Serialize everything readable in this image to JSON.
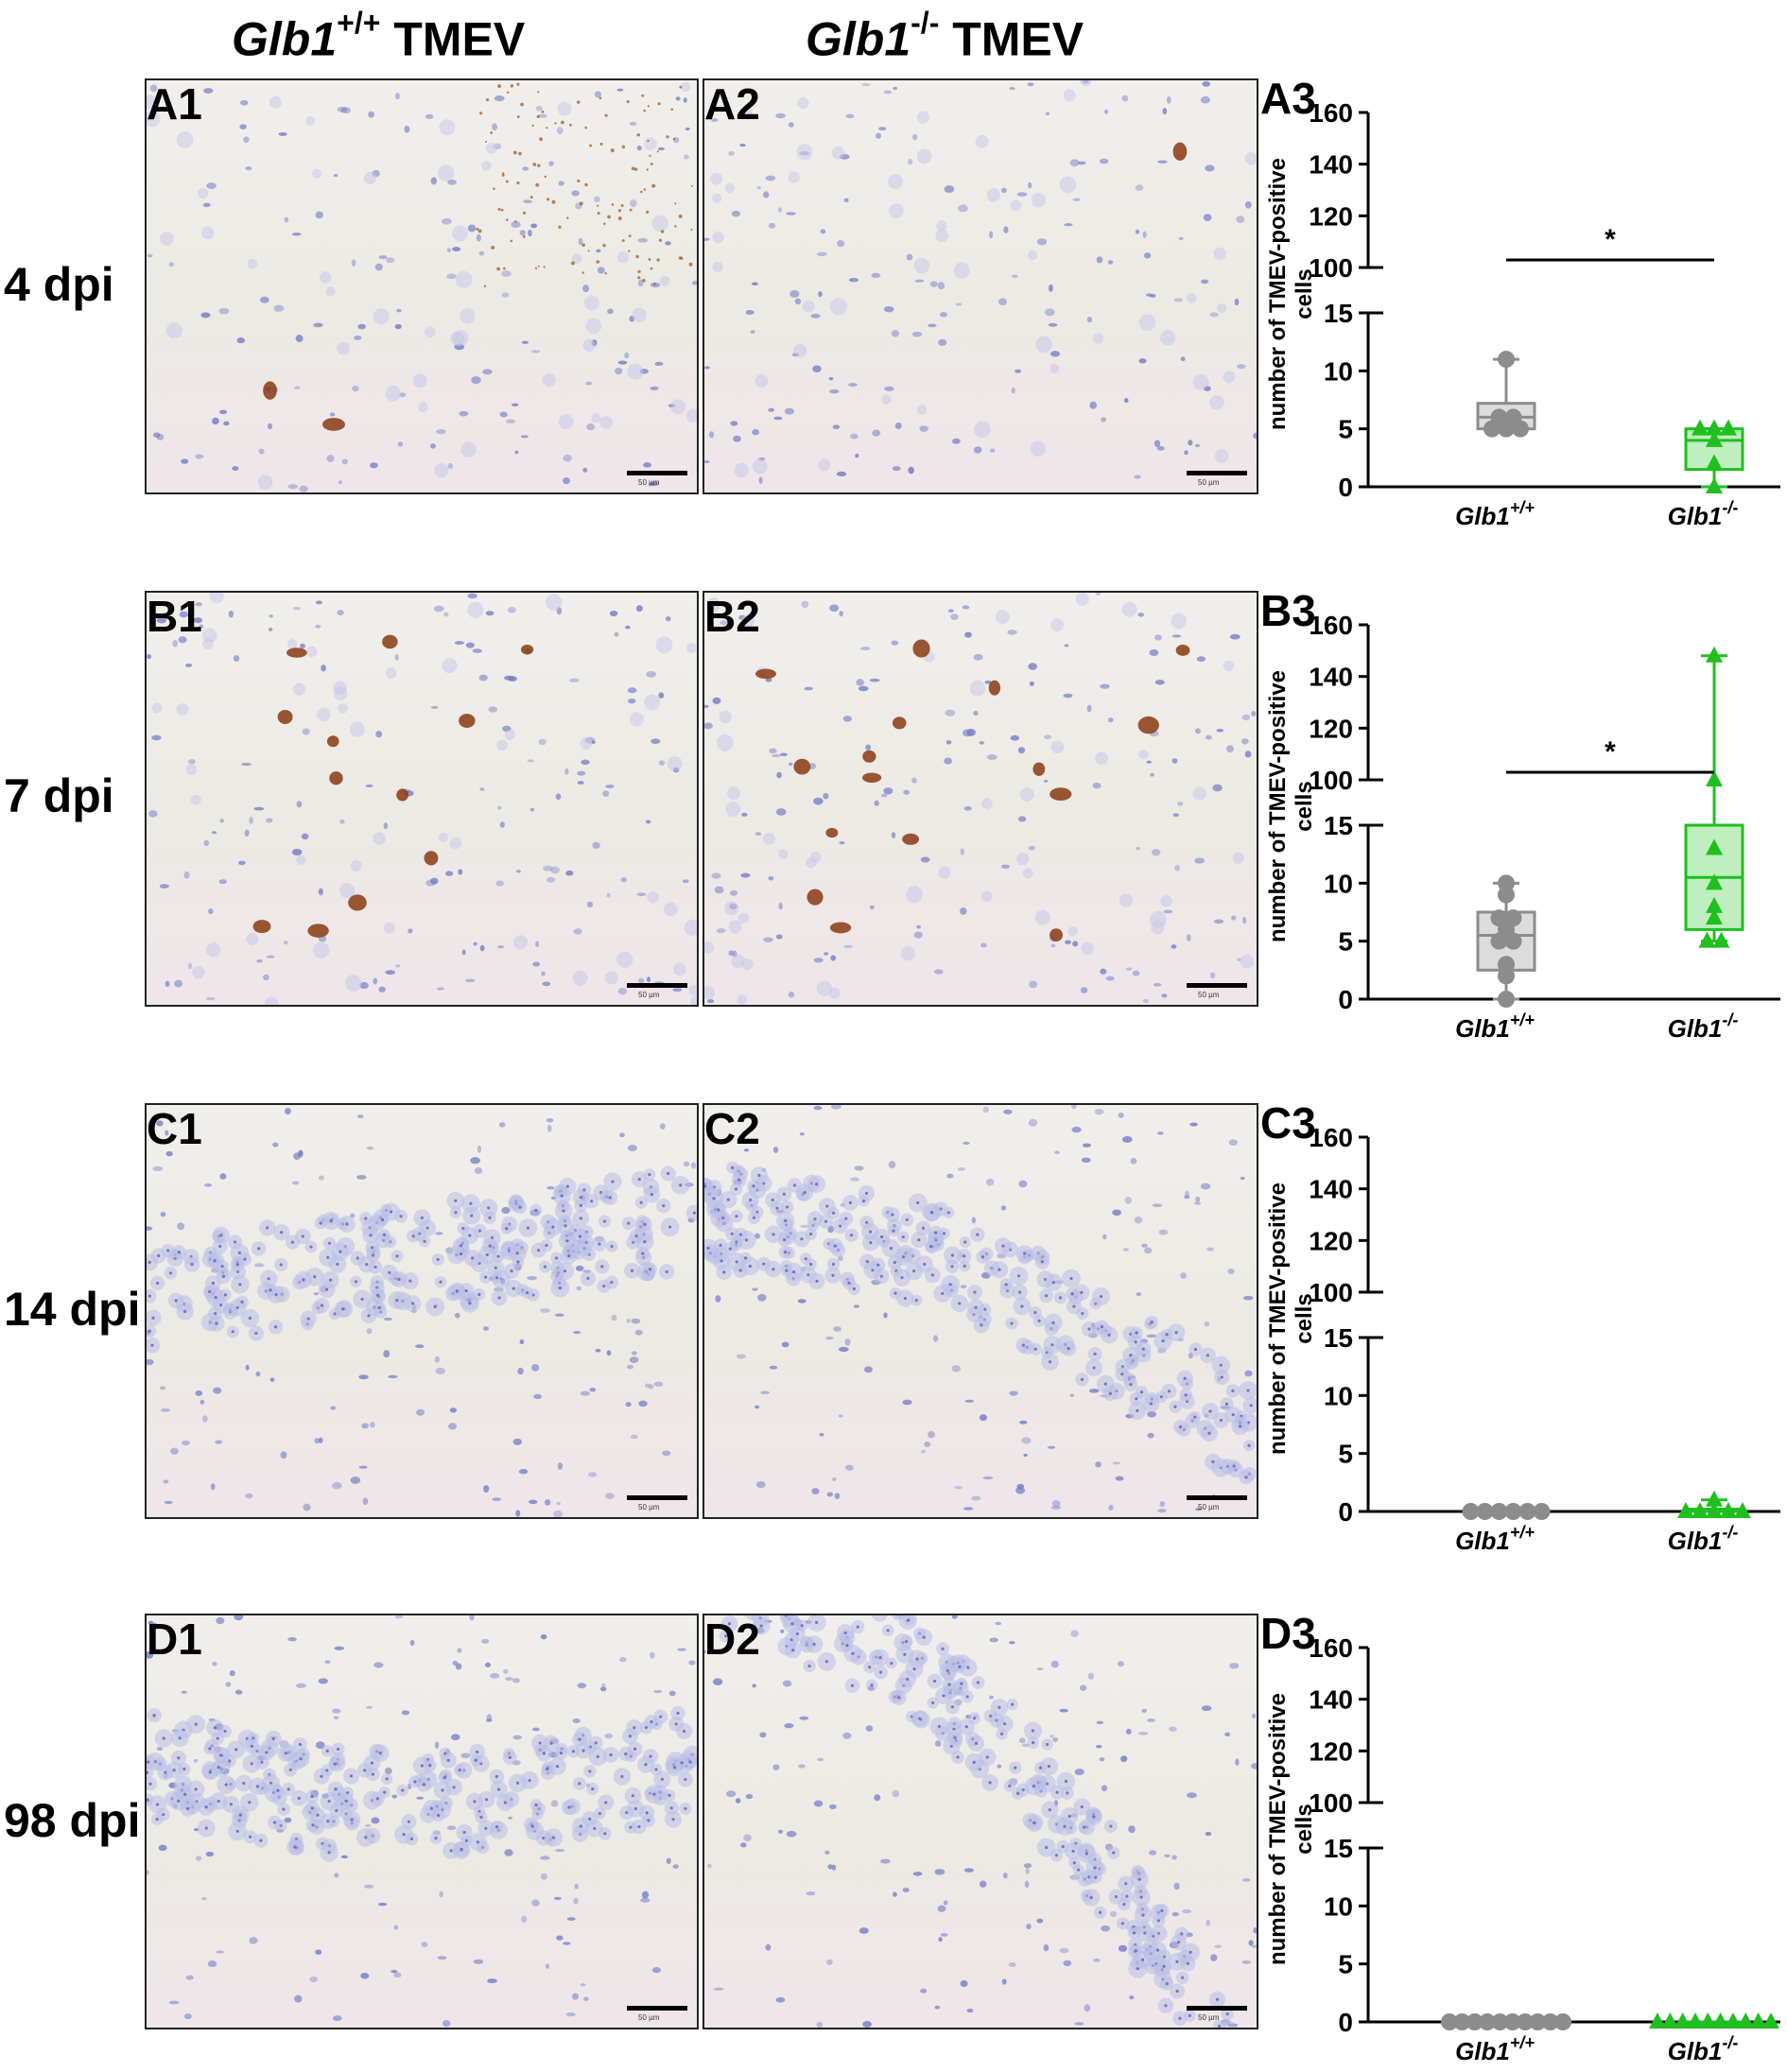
{
  "columns": {
    "wt": {
      "gene": "Glb1",
      "genotype": "+/+",
      "suffix": " TMEV"
    },
    "ko": {
      "gene": "Glb1",
      "genotype": "-/-",
      "suffix": " TMEV"
    }
  },
  "rows": [
    {
      "dpi": "4 dpi",
      "micro_labels": [
        "A1",
        "A2"
      ],
      "chart_label": "A3"
    },
    {
      "dpi": "7 dpi",
      "micro_labels": [
        "B1",
        "B2"
      ],
      "chart_label": "B3"
    },
    {
      "dpi": "14 dpi",
      "micro_labels": [
        "C1",
        "C2"
      ],
      "chart_label": "C3"
    },
    {
      "dpi": "98 dpi",
      "micro_labels": [
        "D1",
        "D2"
      ],
      "chart_label": "D3"
    }
  ],
  "scale_bar_text": "50 µm",
  "colors": {
    "wt": "#8c8c8c",
    "wt_fill": "#dcdcdc",
    "ko": "#1fbf1f",
    "ko_fill": "#bfeebf",
    "hematoxylin": "#6e78c4",
    "dab": "#8a3a12"
  },
  "chart_data": [
    {
      "type": "box-scatter",
      "label": "A3",
      "ylabel": "number of TMEV-positive cells",
      "categories": [
        "Glb1+/+",
        "Glb1-/-"
      ],
      "y_lower_range": [
        0,
        15
      ],
      "y_lower_ticks": [
        0,
        5,
        10,
        15
      ],
      "y_upper_range": [
        100,
        160
      ],
      "y_upper_ticks": [
        100,
        120,
        140,
        160
      ],
      "series": [
        {
          "values": [
            5,
            5,
            5,
            6,
            6,
            11
          ],
          "box": {
            "min": 5,
            "q1": 5,
            "median": 6,
            "q3": 7.2,
            "max": 11
          }
        },
        {
          "values": [
            0,
            2,
            4,
            5,
            5,
            5
          ],
          "box": {
            "min": 0,
            "q1": 1.5,
            "median": 4,
            "q3": 5,
            "max": 5
          }
        }
      ],
      "significance": "*"
    },
    {
      "type": "box-scatter",
      "label": "B3",
      "ylabel": "number of TMEV-positive cells",
      "categories": [
        "Glb1+/+",
        "Glb1-/-"
      ],
      "y_lower_range": [
        0,
        15
      ],
      "y_lower_ticks": [
        0,
        5,
        10,
        15
      ],
      "y_upper_range": [
        100,
        160
      ],
      "y_upper_ticks": [
        100,
        120,
        140,
        160
      ],
      "series": [
        {
          "values": [
            0,
            2,
            3,
            5,
            5,
            6,
            7,
            7,
            9,
            10
          ],
          "box": {
            "min": 0,
            "q1": 2.5,
            "median": 5.5,
            "q3": 7.5,
            "max": 10
          }
        },
        {
          "values": [
            5,
            5,
            7,
            8,
            10,
            13,
            100,
            148
          ],
          "box": {
            "min": 5,
            "q1": 6,
            "median": 10.5,
            "q3": 15,
            "max": 148
          }
        }
      ],
      "significance": "*"
    },
    {
      "type": "box-scatter",
      "label": "C3",
      "ylabel": "number of TMEV-positive cells",
      "categories": [
        "Glb1+/+",
        "Glb1-/-"
      ],
      "y_lower_range": [
        0,
        15
      ],
      "y_lower_ticks": [
        0,
        5,
        10,
        15
      ],
      "y_upper_range": [
        100,
        160
      ],
      "y_upper_ticks": [
        100,
        120,
        140,
        160
      ],
      "series": [
        {
          "values": [
            0,
            0,
            0,
            0,
            0,
            0
          ],
          "box": {
            "min": 0,
            "q1": 0,
            "median": 0,
            "q3": 0,
            "max": 0
          }
        },
        {
          "values": [
            0,
            0,
            0,
            0,
            0,
            1
          ],
          "box": {
            "min": 0,
            "q1": 0,
            "median": 0,
            "q3": 0.2,
            "max": 1
          }
        }
      ],
      "significance": ""
    },
    {
      "type": "box-scatter",
      "label": "D3",
      "ylabel": "number of TMEV-positive cells",
      "categories": [
        "Glb1+/+",
        "Glb1-/-"
      ],
      "y_lower_range": [
        0,
        15
      ],
      "y_lower_ticks": [
        0,
        5,
        10,
        15
      ],
      "y_upper_range": [
        100,
        160
      ],
      "y_upper_ticks": [
        100,
        120,
        140,
        160
      ],
      "series": [
        {
          "values": [
            0,
            0,
            0,
            0,
            0,
            0,
            0,
            0,
            0,
            0
          ],
          "box": {
            "min": 0,
            "q1": 0,
            "median": 0,
            "q3": 0,
            "max": 0
          }
        },
        {
          "values": [
            0,
            0,
            0,
            0,
            0,
            0,
            0,
            0,
            0,
            0
          ],
          "box": {
            "min": 0,
            "q1": 0,
            "median": 0,
            "q3": 0,
            "max": 0
          }
        }
      ],
      "significance": ""
    }
  ]
}
